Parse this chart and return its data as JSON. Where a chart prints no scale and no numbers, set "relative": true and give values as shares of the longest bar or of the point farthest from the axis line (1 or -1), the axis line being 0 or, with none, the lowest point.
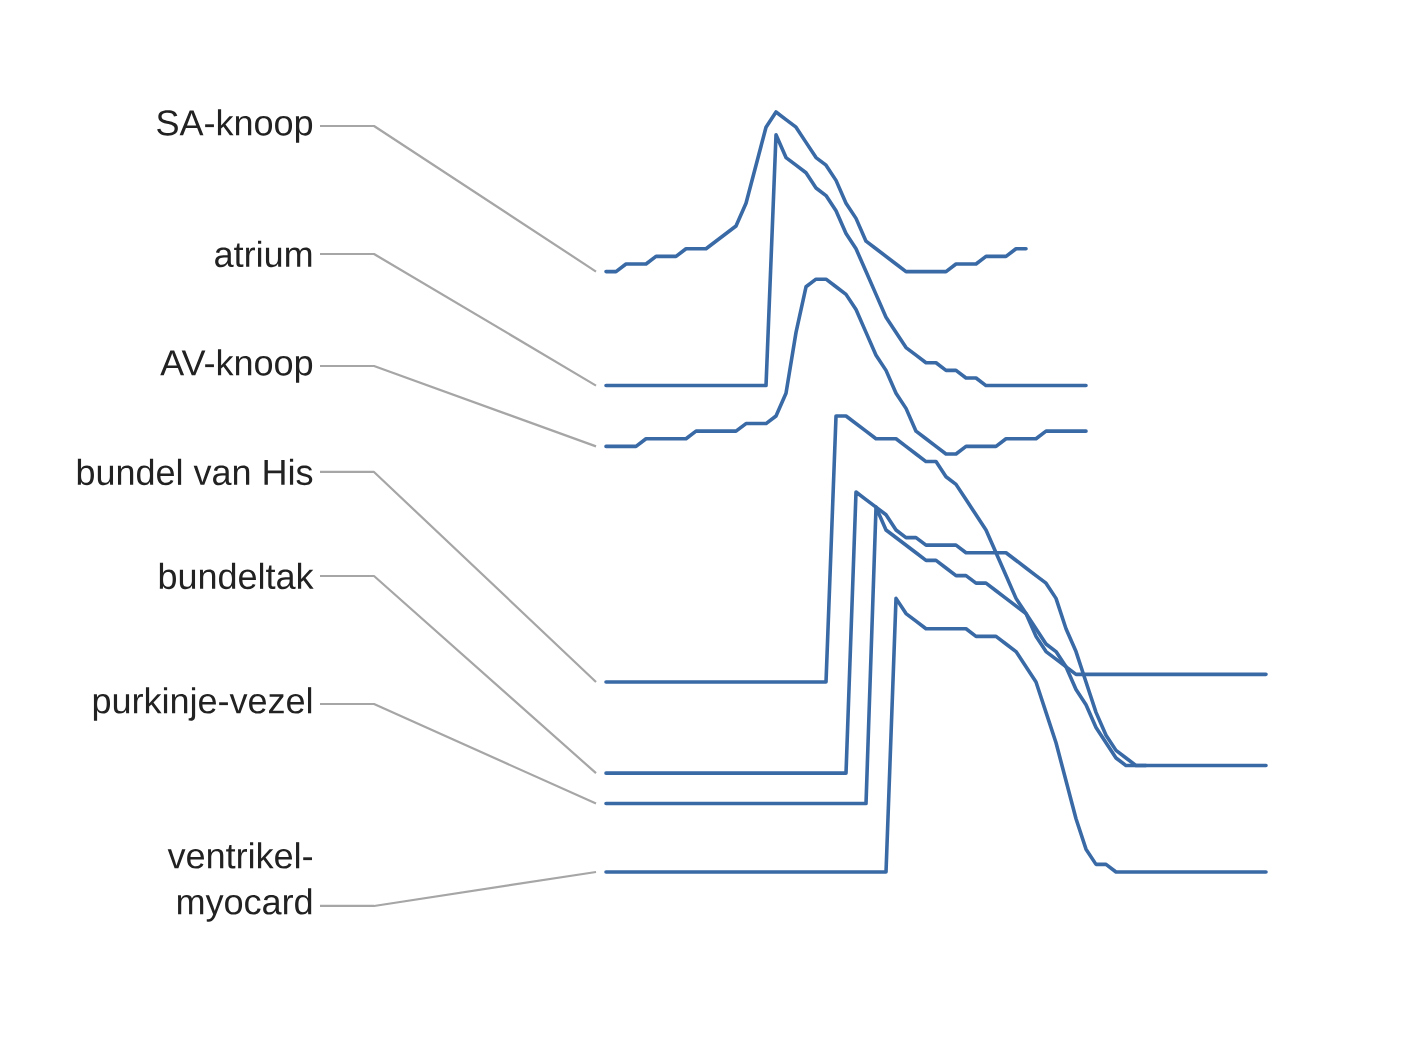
{
  "chart_data": {
    "type": "line",
    "relative": true,
    "categories": [
      null,
      null,
      null,
      null,
      null,
      null,
      null,
      null,
      null,
      null,
      null,
      null,
      null,
      null,
      null,
      null,
      null,
      null,
      null,
      null,
      null,
      null,
      null,
      null,
      null,
      null,
      null,
      null,
      null,
      null,
      null,
      null,
      null,
      null,
      null,
      null,
      null,
      null,
      null,
      null,
      null,
      null,
      null,
      null,
      null,
      null,
      null,
      null,
      null,
      null,
      null,
      null,
      null,
      null,
      null,
      null,
      null,
      null,
      null,
      null,
      null,
      null,
      null,
      null,
      null,
      null,
      null
    ],
    "series": [
      {
        "name": "SA-knoop",
        "color": "#3a6aa6",
        "values": [
          0.79,
          0.79,
          0.8,
          0.8,
          0.8,
          0.81,
          0.81,
          0.81,
          0.82,
          0.82,
          0.82,
          0.83,
          0.84,
          0.85,
          0.88,
          0.93,
          0.98,
          1.0,
          0.99,
          0.98,
          0.96,
          0.94,
          0.93,
          0.91,
          0.88,
          0.86,
          0.83,
          0.82,
          0.81,
          0.8,
          0.79,
          0.79,
          0.79,
          0.79,
          0.79,
          0.8,
          0.8,
          0.8,
          0.81,
          0.81,
          0.81,
          0.82,
          0.82,
          null,
          null,
          null,
          null,
          null,
          null,
          null,
          null,
          null,
          null,
          null,
          null,
          null,
          null,
          null,
          null,
          null,
          null,
          null,
          null,
          null,
          null,
          null,
          null
        ]
      },
      {
        "name": "atrium",
        "color": "#3a6aa6",
        "values": [
          0.64,
          0.64,
          0.64,
          0.64,
          0.64,
          0.64,
          0.64,
          0.64,
          0.64,
          0.64,
          0.64,
          0.64,
          0.64,
          0.64,
          0.64,
          0.64,
          0.64,
          0.97,
          0.94,
          0.93,
          0.92,
          0.9,
          0.89,
          0.87,
          0.84,
          0.82,
          0.79,
          0.76,
          0.73,
          0.71,
          0.69,
          0.68,
          0.67,
          0.67,
          0.66,
          0.66,
          0.65,
          0.65,
          0.64,
          0.64,
          0.64,
          0.64,
          0.64,
          0.64,
          0.64,
          0.64,
          0.64,
          0.64,
          0.64,
          null,
          null,
          null,
          null,
          null,
          null,
          null,
          null,
          null,
          null,
          null,
          null,
          null,
          null,
          null,
          null,
          null,
          null
        ]
      },
      {
        "name": "AV-knoop",
        "color": "#3a6aa6",
        "values": [
          0.56,
          0.56,
          0.56,
          0.56,
          0.57,
          0.57,
          0.57,
          0.57,
          0.57,
          0.58,
          0.58,
          0.58,
          0.58,
          0.58,
          0.59,
          0.59,
          0.59,
          0.6,
          0.63,
          0.71,
          0.77,
          0.78,
          0.78,
          0.77,
          0.76,
          0.74,
          0.71,
          0.68,
          0.66,
          0.63,
          0.61,
          0.58,
          0.57,
          0.56,
          0.55,
          0.55,
          0.56,
          0.56,
          0.56,
          0.56,
          0.57,
          0.57,
          0.57,
          0.57,
          0.58,
          0.58,
          0.58,
          0.58,
          0.58,
          null,
          null,
          null,
          null,
          null,
          null,
          null,
          null,
          null,
          null,
          null,
          null,
          null,
          null,
          null,
          null,
          null,
          null
        ]
      },
      {
        "name": "bundel van His",
        "color": "#3a6aa6",
        "values": [
          0.25,
          0.25,
          0.25,
          0.25,
          0.25,
          0.25,
          0.25,
          0.25,
          0.25,
          0.25,
          0.25,
          0.25,
          0.25,
          0.25,
          0.25,
          0.25,
          0.25,
          0.25,
          0.25,
          0.25,
          0.25,
          0.25,
          0.25,
          0.6,
          0.6,
          0.59,
          0.58,
          0.57,
          0.57,
          0.57,
          0.56,
          0.55,
          0.54,
          0.54,
          0.52,
          0.51,
          0.49,
          0.47,
          0.45,
          0.42,
          0.39,
          0.36,
          0.34,
          0.31,
          0.29,
          0.28,
          0.27,
          0.26,
          0.26,
          0.26,
          0.26,
          0.26,
          0.26,
          0.26,
          0.26,
          0.26,
          0.26,
          0.26,
          0.26,
          0.26,
          0.26,
          0.26,
          0.26,
          0.26,
          0.26,
          0.26,
          0.26
        ]
      },
      {
        "name": "bundeltak",
        "color": "#3a6aa6",
        "values": [
          0.13,
          0.13,
          0.13,
          0.13,
          0.13,
          0.13,
          0.13,
          0.13,
          0.13,
          0.13,
          0.13,
          0.13,
          0.13,
          0.13,
          0.13,
          0.13,
          0.13,
          0.13,
          0.13,
          0.13,
          0.13,
          0.13,
          0.13,
          0.13,
          0.13,
          0.5,
          0.49,
          0.48,
          0.47,
          0.45,
          0.44,
          0.44,
          0.43,
          0.43,
          0.43,
          0.43,
          0.42,
          0.42,
          0.42,
          0.42,
          0.42,
          0.41,
          0.4,
          0.39,
          0.38,
          0.36,
          0.32,
          0.29,
          0.25,
          0.21,
          0.18,
          0.16,
          0.15,
          0.14,
          0.14,
          0.14,
          0.14,
          0.14,
          0.14,
          0.14,
          0.14,
          0.14,
          0.14,
          0.14,
          0.14,
          0.14,
          0.14
        ]
      },
      {
        "name": "purkinje-vezel",
        "color": "#3a6aa6",
        "values": [
          0.09,
          0.09,
          0.09,
          0.09,
          0.09,
          0.09,
          0.09,
          0.09,
          0.09,
          0.09,
          0.09,
          0.09,
          0.09,
          0.09,
          0.09,
          0.09,
          0.09,
          0.09,
          0.09,
          0.09,
          0.09,
          0.09,
          0.09,
          0.09,
          0.09,
          0.09,
          0.09,
          0.48,
          0.45,
          0.44,
          0.43,
          0.42,
          0.41,
          0.41,
          0.4,
          0.39,
          0.39,
          0.38,
          0.38,
          0.37,
          0.36,
          0.35,
          0.34,
          0.32,
          0.3,
          0.29,
          0.27,
          0.24,
          0.22,
          0.19,
          0.17,
          0.15,
          0.14,
          0.14,
          0.14,
          null,
          null,
          null,
          null,
          null,
          null,
          null,
          null,
          null,
          null,
          null,
          null
        ]
      },
      {
        "name": "ventrikel-myocard",
        "color": "#3a6aa6",
        "values": [
          0,
          0,
          0,
          0,
          0,
          0,
          0,
          0,
          0,
          0,
          0,
          0,
          0,
          0,
          0,
          0,
          0,
          0,
          0,
          0,
          0,
          0,
          0,
          0,
          0,
          0,
          0,
          0,
          0,
          0.36,
          0.34,
          0.33,
          0.32,
          0.32,
          0.32,
          0.32,
          0.32,
          0.31,
          0.31,
          0.31,
          0.3,
          0.29,
          0.27,
          0.25,
          0.21,
          0.17,
          0.12,
          0.07,
          0.03,
          0.01,
          0.01,
          0,
          0,
          0,
          0,
          0,
          0,
          0,
          0,
          0,
          0,
          0,
          0,
          0,
          0,
          0,
          0
        ]
      }
    ]
  }
}
